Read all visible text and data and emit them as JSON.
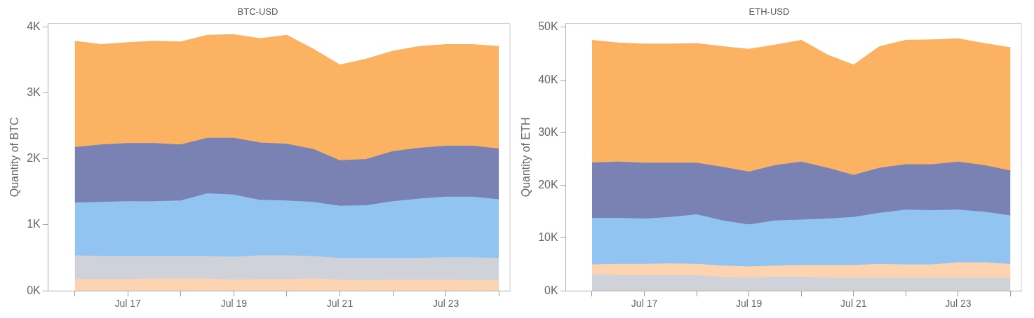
{
  "chart_data": [
    {
      "type": "area",
      "title": "BTC-USD",
      "ylabel": "Quantity of BTC",
      "stacked": true,
      "grid": false,
      "legend": false,
      "x": [
        "--07-16T00:00",
        "--07-16T12:00",
        "--07-17T00:00",
        "--07-17T12:00",
        "--07-18T00:00",
        "--07-18T12:00",
        "--07-19T00:00",
        "--07-19T12:00",
        "--07-20T00:00",
        "--07-20T12:00",
        "--07-21T00:00",
        "--07-21T12:00",
        "--07-22T00:00",
        "--07-22T12:00",
        "--07-23T00:00",
        "--07-23T12:00",
        "--07-24T00:00"
      ],
      "xlim": [
        "--07-15T12:00",
        "--07-24T05:00"
      ],
      "xticks": [
        {
          "value": "--07-16",
          "label": null
        },
        {
          "value": "--07-17",
          "label": "Jul 17"
        },
        {
          "value": "--07-18",
          "label": null
        },
        {
          "value": "--07-19",
          "label": "Jul 19"
        },
        {
          "value": "--07-20",
          "label": null
        },
        {
          "value": "--07-21",
          "label": "Jul 21"
        },
        {
          "value": "--07-22",
          "label": null
        },
        {
          "value": "--07-23",
          "label": "Jul 23"
        },
        {
          "value": "--07-24",
          "label": null
        }
      ],
      "ylim": [
        0,
        4050
      ],
      "yticks": [
        {
          "value": 0,
          "label": "0K"
        },
        {
          "value": 1000,
          "label": "1K"
        },
        {
          "value": 2000,
          "label": "2K"
        },
        {
          "value": 3000,
          "label": "3K"
        },
        {
          "value": 4000,
          "label": "4K"
        }
      ],
      "series": [
        {
          "color": "#fdd4b2",
          "values": [
            170,
            170,
            170,
            180,
            180,
            180,
            160,
            170,
            170,
            180,
            160,
            150,
            160,
            160,
            160,
            150,
            150
          ]
        },
        {
          "color": "#cfd2d9",
          "values": [
            360,
            350,
            350,
            340,
            340,
            340,
            350,
            360,
            360,
            340,
            330,
            340,
            330,
            330,
            340,
            350,
            340
          ]
        },
        {
          "color": "#92c4f2",
          "values": [
            800,
            820,
            830,
            830,
            840,
            950,
            940,
            840,
            830,
            820,
            790,
            800,
            860,
            900,
            920,
            920,
            890
          ]
        },
        {
          "color": "#7a82b3",
          "values": [
            840,
            870,
            880,
            880,
            850,
            840,
            860,
            870,
            860,
            800,
            690,
            700,
            760,
            770,
            770,
            770,
            770
          ]
        },
        {
          "color": "#fbb262",
          "values": [
            1610,
            1520,
            1530,
            1550,
            1560,
            1560,
            1570,
            1580,
            1650,
            1520,
            1450,
            1520,
            1520,
            1540,
            1540,
            1540,
            1550
          ]
        }
      ]
    },
    {
      "type": "area",
      "title": "ETH-USD",
      "ylabel": "Quantity of ETH",
      "stacked": true,
      "grid": false,
      "legend": false,
      "x": [
        "--07-16T00:00",
        "--07-16T12:00",
        "--07-17T00:00",
        "--07-17T12:00",
        "--07-18T00:00",
        "--07-18T12:00",
        "--07-19T00:00",
        "--07-19T12:00",
        "--07-20T00:00",
        "--07-20T12:00",
        "--07-21T00:00",
        "--07-21T12:00",
        "--07-22T00:00",
        "--07-22T12:00",
        "--07-23T00:00",
        "--07-23T12:00",
        "--07-24T00:00"
      ],
      "xlim": [
        "--07-15T12:00",
        "--07-24T05:00"
      ],
      "xticks": [
        {
          "value": "--07-16",
          "label": null
        },
        {
          "value": "--07-17",
          "label": "Jul 17"
        },
        {
          "value": "--07-18",
          "label": null
        },
        {
          "value": "--07-19",
          "label": "Jul 19"
        },
        {
          "value": "--07-20",
          "label": null
        },
        {
          "value": "--07-21",
          "label": "Jul 21"
        },
        {
          "value": "--07-22",
          "label": null
        },
        {
          "value": "--07-23",
          "label": "Jul 23"
        },
        {
          "value": "--07-24",
          "label": null
        }
      ],
      "ylim": [
        0,
        50700
      ],
      "yticks": [
        {
          "value": 0,
          "label": "0K"
        },
        {
          "value": 10000,
          "label": "10K"
        },
        {
          "value": 20000,
          "label": "20K"
        },
        {
          "value": 30000,
          "label": "30K"
        },
        {
          "value": 40000,
          "label": "40K"
        },
        {
          "value": 50000,
          "label": "50K"
        }
      ],
      "series": [
        {
          "color": "#cfd2d9",
          "values": [
            3000,
            2900,
            2900,
            2900,
            2900,
            2500,
            2400,
            2600,
            2600,
            2400,
            2400,
            2400,
            2400,
            2400,
            2400,
            2400,
            2400
          ]
        },
        {
          "color": "#fdd4b2",
          "values": [
            1900,
            2100,
            2100,
            2200,
            2100,
            2200,
            2100,
            2100,
            2200,
            2400,
            2400,
            2600,
            2500,
            2500,
            2900,
            2900,
            2600
          ]
        },
        {
          "color": "#92c4f2",
          "values": [
            8850,
            8750,
            8600,
            8800,
            9400,
            8550,
            8000,
            8550,
            8600,
            8800,
            9100,
            9700,
            10400,
            10300,
            10000,
            9600,
            9200
          ]
        },
        {
          "color": "#7a82b3",
          "values": [
            10500,
            10650,
            10600,
            10300,
            9800,
            10150,
            10000,
            10500,
            11000,
            9650,
            8000,
            8550,
            8600,
            8700,
            9100,
            8850,
            8500
          ]
        },
        {
          "color": "#fbb262",
          "values": [
            23250,
            22600,
            22600,
            22600,
            22700,
            22900,
            23300,
            22850,
            23100,
            21450,
            20900,
            23050,
            23600,
            23700,
            23400,
            23150,
            23400
          ]
        }
      ]
    }
  ]
}
